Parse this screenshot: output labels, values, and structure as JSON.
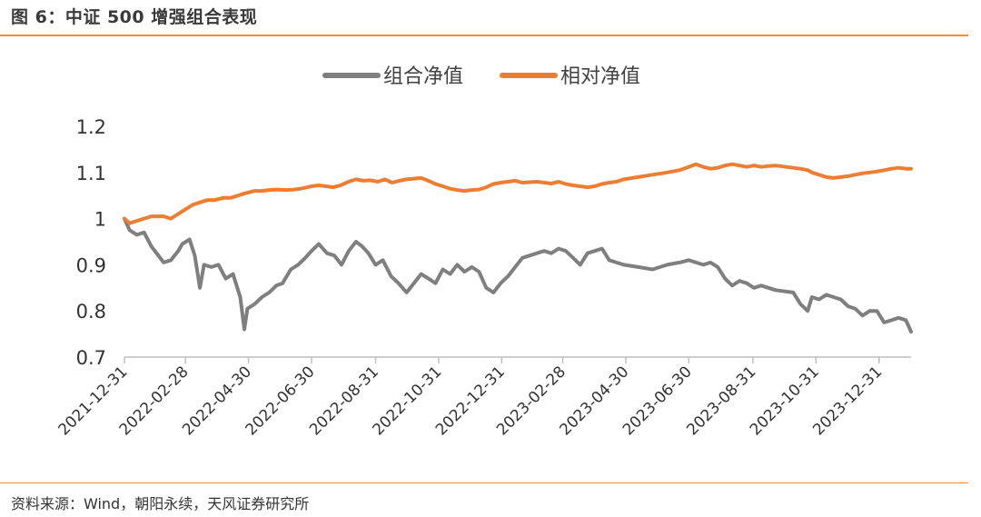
{
  "figure": {
    "title": "图 6：中证 500 增强组合表现",
    "source": "资料来源：Wind，朝阳永续，天风证券研究所"
  },
  "colors": {
    "accent_rule": "#f08c32",
    "portfolio_line": "#7f7f7f",
    "relative_line": "#ed7d31",
    "axis": "#bfbfbf",
    "text": "#333333"
  },
  "chart_data": {
    "type": "line",
    "title": "",
    "xlabel": "",
    "ylabel": "",
    "ylim": [
      0.7,
      1.2
    ],
    "yticks": [
      0.7,
      0.8,
      0.9,
      1.0,
      1.1,
      1.2
    ],
    "ytick_labels": [
      "0.7",
      "0.8",
      "0.9",
      "1",
      "1.1",
      "1.2"
    ],
    "xlim": [
      "2021-12-31",
      "2024-01-31"
    ],
    "xticks": [
      "2021-12-31",
      "2022-02-28",
      "2022-04-30",
      "2022-06-30",
      "2022-08-31",
      "2022-10-31",
      "2022-12-31",
      "2023-02-28",
      "2023-04-30",
      "2023-06-30",
      "2023-08-31",
      "2023-10-31",
      "2023-12-31"
    ],
    "grid": false,
    "legend_position": "top-center",
    "series": [
      {
        "name": "组合净值",
        "x": [
          "2021-12-31",
          "2022-01-05",
          "2022-01-12",
          "2022-01-19",
          "2022-01-26",
          "2022-02-07",
          "2022-02-14",
          "2022-02-21",
          "2022-02-25",
          "2022-03-04",
          "2022-03-09",
          "2022-03-14",
          "2022-03-18",
          "2022-03-25",
          "2022-04-01",
          "2022-04-08",
          "2022-04-15",
          "2022-04-22",
          "2022-04-26",
          "2022-04-29",
          "2022-05-06",
          "2022-05-13",
          "2022-05-20",
          "2022-05-27",
          "2022-06-02",
          "2022-06-10",
          "2022-06-17",
          "2022-06-24",
          "2022-06-30",
          "2022-07-07",
          "2022-07-15",
          "2022-07-22",
          "2022-07-29",
          "2022-08-05",
          "2022-08-12",
          "2022-08-18",
          "2022-08-24",
          "2022-08-31",
          "2022-09-07",
          "2022-09-15",
          "2022-09-22",
          "2022-09-30",
          "2022-10-14",
          "2022-10-21",
          "2022-10-28",
          "2022-11-04",
          "2022-11-11",
          "2022-11-18",
          "2022-11-25",
          "2022-12-02",
          "2022-12-09",
          "2022-12-16",
          "2022-12-23",
          "2022-12-30",
          "2023-01-06",
          "2023-01-13",
          "2023-01-20",
          "2023-02-03",
          "2023-02-10",
          "2023-02-17",
          "2023-02-24",
          "2023-03-03",
          "2023-03-10",
          "2023-03-17",
          "2023-03-24",
          "2023-03-31",
          "2023-04-07",
          "2023-04-14",
          "2023-04-21",
          "2023-04-28",
          "2023-05-12",
          "2023-05-26",
          "2023-06-09",
          "2023-06-21",
          "2023-06-30",
          "2023-07-07",
          "2023-07-14",
          "2023-07-21",
          "2023-07-28",
          "2023-08-04",
          "2023-08-11",
          "2023-08-18",
          "2023-08-25",
          "2023-09-01",
          "2023-09-08",
          "2023-09-15",
          "2023-09-22",
          "2023-10-09",
          "2023-10-16",
          "2023-10-23",
          "2023-10-27",
          "2023-11-03",
          "2023-11-10",
          "2023-11-17",
          "2023-11-24",
          "2023-12-01",
          "2023-12-08",
          "2023-12-15",
          "2023-12-22",
          "2023-12-29",
          "2024-01-05",
          "2024-01-12",
          "2024-01-19",
          "2024-01-26",
          "2024-01-31"
        ],
        "values": [
          1.0,
          0.975,
          0.965,
          0.97,
          0.94,
          0.905,
          0.91,
          0.93,
          0.945,
          0.955,
          0.92,
          0.85,
          0.9,
          0.895,
          0.9,
          0.87,
          0.88,
          0.83,
          0.76,
          0.805,
          0.815,
          0.83,
          0.84,
          0.855,
          0.86,
          0.89,
          0.9,
          0.915,
          0.93,
          0.945,
          0.925,
          0.92,
          0.9,
          0.93,
          0.95,
          0.94,
          0.925,
          0.9,
          0.91,
          0.875,
          0.86,
          0.84,
          0.88,
          0.87,
          0.86,
          0.89,
          0.88,
          0.9,
          0.885,
          0.895,
          0.885,
          0.85,
          0.84,
          0.86,
          0.875,
          0.895,
          0.915,
          0.925,
          0.93,
          0.925,
          0.935,
          0.93,
          0.915,
          0.9,
          0.925,
          0.93,
          0.935,
          0.91,
          0.905,
          0.9,
          0.895,
          0.89,
          0.9,
          0.905,
          0.91,
          0.905,
          0.9,
          0.905,
          0.895,
          0.87,
          0.855,
          0.865,
          0.86,
          0.85,
          0.855,
          0.85,
          0.845,
          0.84,
          0.815,
          0.8,
          0.83,
          0.825,
          0.835,
          0.83,
          0.825,
          0.81,
          0.805,
          0.79,
          0.8,
          0.8,
          0.775,
          0.78,
          0.785,
          0.78,
          0.755
        ]
      },
      {
        "name": "相对净值",
        "x": [
          "2021-12-31",
          "2022-01-05",
          "2022-01-12",
          "2022-01-19",
          "2022-01-26",
          "2022-02-07",
          "2022-02-14",
          "2022-02-21",
          "2022-02-28",
          "2022-03-07",
          "2022-03-14",
          "2022-03-21",
          "2022-03-28",
          "2022-04-06",
          "2022-04-13",
          "2022-04-20",
          "2022-04-27",
          "2022-05-06",
          "2022-05-13",
          "2022-05-20",
          "2022-05-27",
          "2022-06-06",
          "2022-06-13",
          "2022-06-20",
          "2022-06-30",
          "2022-07-07",
          "2022-07-14",
          "2022-07-21",
          "2022-07-28",
          "2022-08-05",
          "2022-08-12",
          "2022-08-19",
          "2022-08-26",
          "2022-09-02",
          "2022-09-09",
          "2022-09-16",
          "2022-09-23",
          "2022-09-30",
          "2022-10-14",
          "2022-10-21",
          "2022-10-28",
          "2022-11-04",
          "2022-11-11",
          "2022-11-18",
          "2022-11-25",
          "2022-12-02",
          "2022-12-09",
          "2022-12-16",
          "2022-12-23",
          "2022-12-30",
          "2023-01-06",
          "2023-01-13",
          "2023-01-20",
          "2023-02-03",
          "2023-02-10",
          "2023-02-17",
          "2023-02-24",
          "2023-03-03",
          "2023-03-10",
          "2023-03-17",
          "2023-03-24",
          "2023-03-31",
          "2023-04-07",
          "2023-04-14",
          "2023-04-21",
          "2023-04-28",
          "2023-05-12",
          "2023-05-26",
          "2023-06-09",
          "2023-06-21",
          "2023-06-30",
          "2023-07-07",
          "2023-07-14",
          "2023-07-21",
          "2023-07-28",
          "2023-08-04",
          "2023-08-11",
          "2023-08-18",
          "2023-08-25",
          "2023-09-01",
          "2023-09-08",
          "2023-09-15",
          "2023-09-22",
          "2023-10-09",
          "2023-10-16",
          "2023-10-23",
          "2023-10-27",
          "2023-11-03",
          "2023-11-10",
          "2023-11-17",
          "2023-11-24",
          "2023-12-01",
          "2023-12-08",
          "2023-12-15",
          "2023-12-22",
          "2023-12-29",
          "2024-01-05",
          "2024-01-12",
          "2024-01-19",
          "2024-01-26",
          "2024-01-31"
        ],
        "values": [
          1.0,
          0.99,
          0.995,
          1.0,
          1.005,
          1.005,
          1.0,
          1.01,
          1.02,
          1.03,
          1.035,
          1.04,
          1.04,
          1.045,
          1.045,
          1.05,
          1.055,
          1.06,
          1.06,
          1.062,
          1.063,
          1.062,
          1.063,
          1.065,
          1.07,
          1.072,
          1.07,
          1.068,
          1.072,
          1.08,
          1.085,
          1.082,
          1.083,
          1.08,
          1.085,
          1.078,
          1.082,
          1.085,
          1.088,
          1.082,
          1.075,
          1.07,
          1.065,
          1.062,
          1.06,
          1.062,
          1.063,
          1.068,
          1.075,
          1.078,
          1.08,
          1.082,
          1.078,
          1.08,
          1.078,
          1.076,
          1.08,
          1.075,
          1.072,
          1.07,
          1.068,
          1.07,
          1.075,
          1.078,
          1.08,
          1.085,
          1.09,
          1.095,
          1.1,
          1.105,
          1.112,
          1.118,
          1.112,
          1.108,
          1.11,
          1.115,
          1.118,
          1.115,
          1.112,
          1.115,
          1.112,
          1.114,
          1.115,
          1.11,
          1.108,
          1.105,
          1.1,
          1.095,
          1.09,
          1.088,
          1.09,
          1.092,
          1.095,
          1.098,
          1.1,
          1.102,
          1.105,
          1.108,
          1.11,
          1.108,
          1.108
        ]
      }
    ]
  }
}
